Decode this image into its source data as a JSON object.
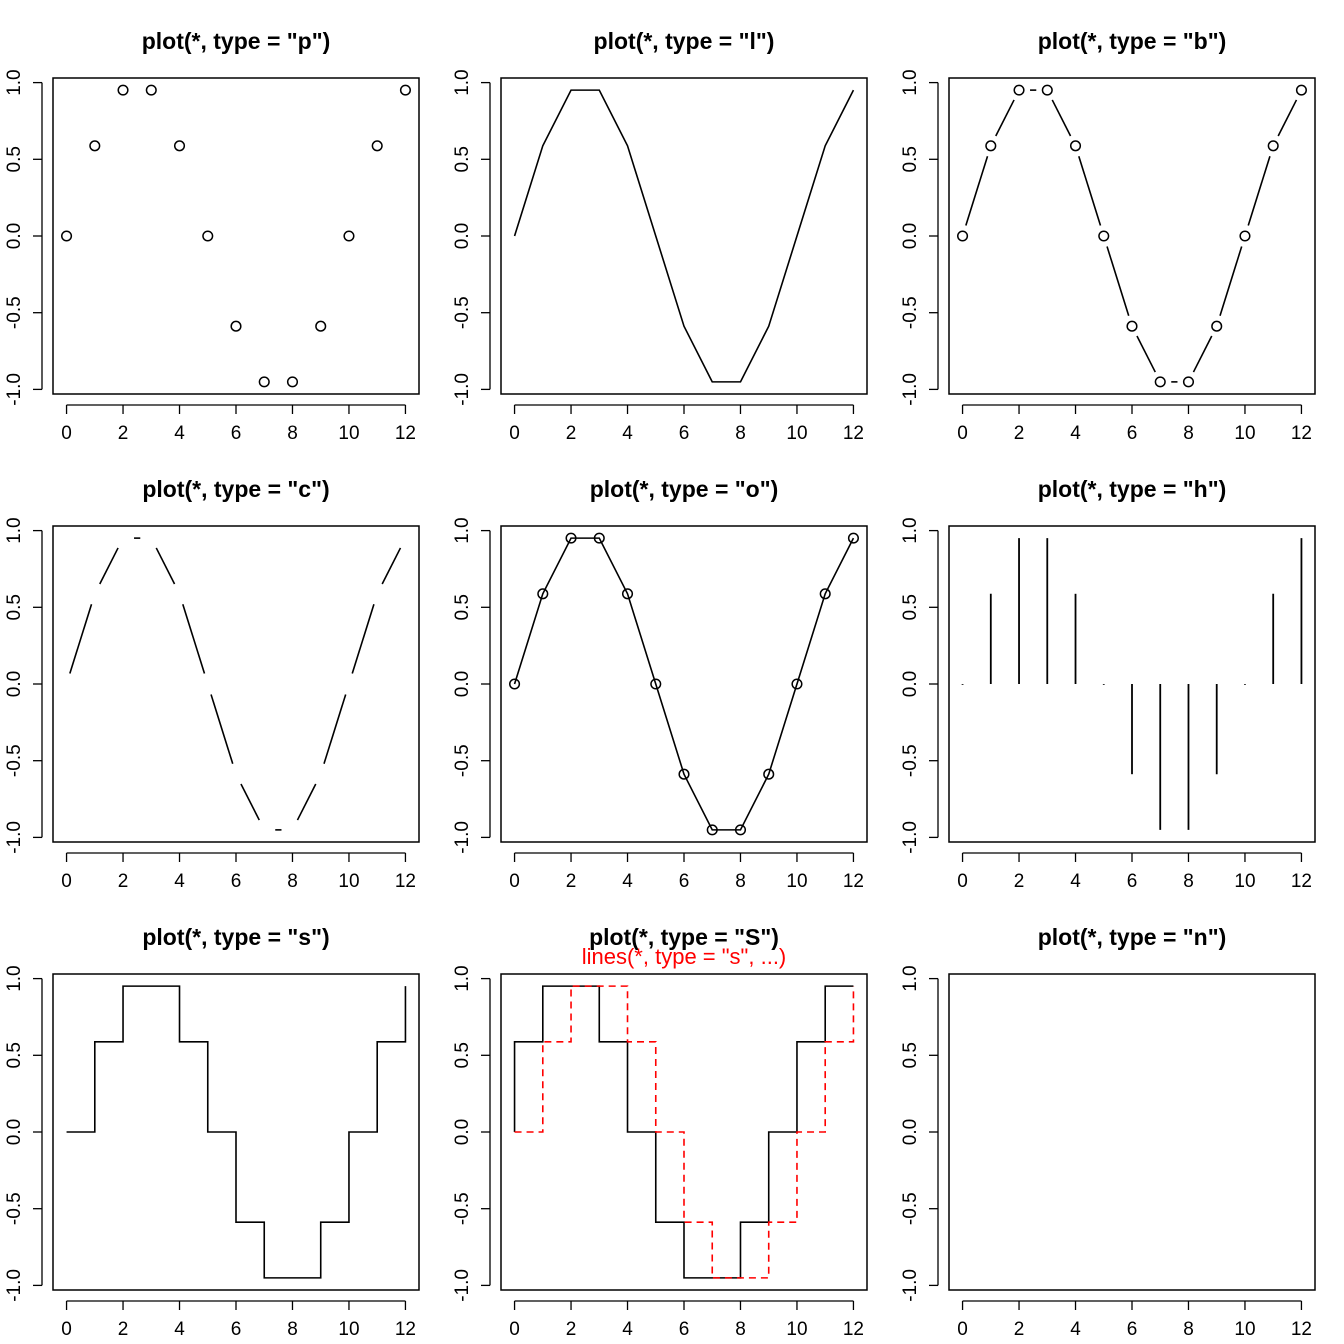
{
  "chart_data": [
    {
      "type": "scatter",
      "plot_type": "p",
      "title": "plot(*, type = \"p\")"
    },
    {
      "type": "line",
      "plot_type": "l",
      "title": "plot(*, type = \"l\")"
    },
    {
      "type": "line",
      "plot_type": "b",
      "title": "plot(*, type = \"b\")"
    },
    {
      "type": "line",
      "plot_type": "c",
      "title": "plot(*, type = \"c\")"
    },
    {
      "type": "line",
      "plot_type": "o",
      "title": "plot(*, type = \"o\")"
    },
    {
      "type": "bar",
      "plot_type": "h",
      "title": "plot(*, type = \"h\")"
    },
    {
      "type": "line",
      "plot_type": "s",
      "title": "plot(*, type = \"s\")"
    },
    {
      "type": "line",
      "plot_type": "S",
      "title": "plot(*, type = \"S\")",
      "subtitle": "lines(*, type = \"s\", ...)",
      "overlay": {
        "plot_type": "s",
        "color": "#ff0000",
        "dash": "dashed"
      }
    },
    {
      "type": "line",
      "plot_type": "n",
      "title": "plot(*, type = \"n\")"
    }
  ],
  "shared": {
    "x": [
      0,
      1,
      2,
      3,
      4,
      5,
      6,
      7,
      8,
      9,
      10,
      11,
      12
    ],
    "y": [
      0,
      0.588,
      0.951,
      0.951,
      0.588,
      0,
      -0.588,
      -0.951,
      -0.951,
      -0.588,
      0,
      0.588,
      0.951
    ],
    "xlim": [
      -0.48,
      12.48
    ],
    "ylim": [
      -1.03,
      1.03
    ],
    "xticks": [
      0,
      2,
      4,
      6,
      8,
      10,
      12
    ],
    "xtick_labels": [
      "0",
      "2",
      "4",
      "6",
      "8",
      "10",
      "12"
    ],
    "yticks": [
      -1,
      -0.5,
      0,
      0.5,
      1
    ],
    "ytick_labels": [
      "-1.0",
      "-0.5",
      "0.0",
      "0.5",
      "1.0"
    ],
    "color": "#000000"
  }
}
